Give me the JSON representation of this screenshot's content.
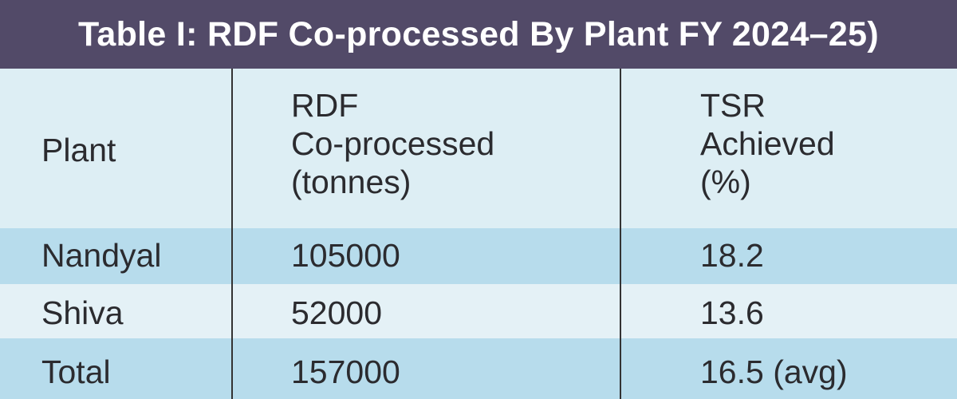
{
  "title": "Table I: RDF Co-processed By Plant FY 2024–25)",
  "headers": {
    "plant": "Plant",
    "rdf": [
      "RDF",
      "Co-processed",
      "(tonnes)"
    ],
    "tsr": [
      "TSR",
      "Achieved",
      "(%)"
    ]
  },
  "rows": [
    {
      "plant": "Nandyal",
      "rdf": "105000",
      "tsr": "18.2"
    },
    {
      "plant": "Shiva",
      "rdf": "52000",
      "tsr": "13.6"
    },
    {
      "plant": "Total",
      "rdf": "157000",
      "tsr": "16.5 (avg)"
    }
  ],
  "colors": {
    "title_background": "#524a68",
    "header_background": "#ddeef4",
    "row_dark": "#b7dcec",
    "row_light": "#e4f1f6"
  }
}
